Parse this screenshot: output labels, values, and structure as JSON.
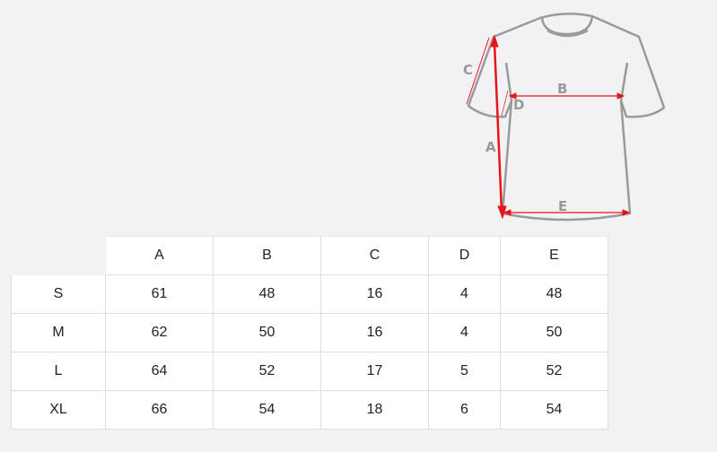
{
  "diagram": {
    "labels": {
      "a": "A",
      "b": "B",
      "c": "C",
      "d": "D",
      "e": "E"
    },
    "colors": {
      "outline": "#9a9a9a",
      "arrow": "#e8141a"
    }
  },
  "table": {
    "headers": [
      "",
      "A",
      "B",
      "C",
      "D",
      "E"
    ],
    "rows": [
      {
        "size": "S",
        "values": [
          "61",
          "48",
          "16",
          "4",
          "48"
        ]
      },
      {
        "size": "M",
        "values": [
          "62",
          "50",
          "16",
          "4",
          "50"
        ]
      },
      {
        "size": "L",
        "values": [
          "64",
          "52",
          "17",
          "5",
          "52"
        ]
      },
      {
        "size": "XL",
        "values": [
          "66",
          "54",
          "18",
          "6",
          "54"
        ]
      }
    ]
  }
}
